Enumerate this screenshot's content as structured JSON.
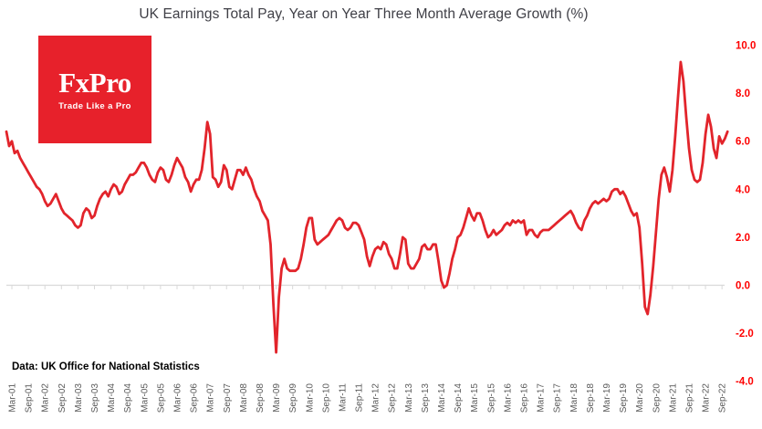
{
  "header": {
    "title": "UK Earnings Total Pay, Year on Year Three Month Average Growth (%)"
  },
  "logo": {
    "brand": "FxPro",
    "tagline": "Trade Like a Pro"
  },
  "footer": {
    "source_note": "Data: UK Office for National Statistics"
  },
  "colors": {
    "line": "#e2242b",
    "logo_bg": "#e7212b",
    "y_tick_labels": "#fe0000",
    "x_tick_labels": "#595959",
    "axis": "#d9d9d9",
    "title_text": "#3f3f46"
  },
  "chart_data": {
    "type": "line",
    "title": "UK Earnings Total Pay, Year on Year Three Month Average Growth (%)",
    "frequency": "monthly",
    "x_start": "2001-01",
    "x_end": "2022-11",
    "ylim": [
      -4.0,
      10.0
    ],
    "grid": "off",
    "legend": "none",
    "y_axis_side": "right",
    "x_tick_labels": [
      "Mar-01",
      "Sep-01",
      "Mar-02",
      "Sep-02",
      "Mar-03",
      "Sep-03",
      "Mar-04",
      "Sep-04",
      "Mar-05",
      "Sep-05",
      "Mar-06",
      "Sep-06",
      "Mar-07",
      "Sep-07",
      "Mar-08",
      "Sep-08",
      "Mar-09",
      "Sep-09",
      "Mar-10",
      "Sep-10",
      "Mar-11",
      "Sep-11",
      "Mar-12",
      "Sep-12",
      "Mar-13",
      "Sep-13",
      "Mar-14",
      "Sep-14",
      "Mar-15",
      "Sep-15",
      "Mar-16",
      "Sep-16",
      "Mar-17",
      "Sep-17",
      "Mar-18",
      "Sep-18",
      "Mar-19",
      "Sep-19",
      "Mar-20",
      "Sep-20",
      "Mar-21",
      "Sep-21",
      "Mar-22",
      "Sep-22"
    ],
    "y_ticks": [
      {
        "label": "10.0",
        "value": 10.0
      },
      {
        "label": "8.0",
        "value": 8.0
      },
      {
        "label": "6.0",
        "value": 6.0
      },
      {
        "label": "4.0",
        "value": 4.0
      },
      {
        "label": "2.0",
        "value": 2.0
      },
      {
        "label": "0.0",
        "value": 0.0
      },
      {
        "label": "-2.0",
        "value": -2.0
      },
      {
        "label": "-4.0",
        "value": -4.0
      }
    ],
    "series": [
      {
        "name": "UK earnings total pay, YoY 3-month average growth (%)",
        "values": [
          6.4,
          5.8,
          6.0,
          5.5,
          5.6,
          5.3,
          5.1,
          4.9,
          4.7,
          4.5,
          4.3,
          4.1,
          4.0,
          3.8,
          3.5,
          3.3,
          3.4,
          3.6,
          3.8,
          3.5,
          3.2,
          3.0,
          2.9,
          2.8,
          2.7,
          2.5,
          2.4,
          2.5,
          3.0,
          3.2,
          3.1,
          2.8,
          2.9,
          3.3,
          3.6,
          3.8,
          3.9,
          3.7,
          4.0,
          4.2,
          4.1,
          3.8,
          3.9,
          4.2,
          4.4,
          4.6,
          4.6,
          4.7,
          4.9,
          5.1,
          5.1,
          4.9,
          4.6,
          4.4,
          4.3,
          4.7,
          4.9,
          4.8,
          4.4,
          4.3,
          4.6,
          5.0,
          5.3,
          5.1,
          4.9,
          4.5,
          4.3,
          3.9,
          4.2,
          4.4,
          4.4,
          4.8,
          5.7,
          6.8,
          6.3,
          4.5,
          4.4,
          4.1,
          4.3,
          5.0,
          4.8,
          4.1,
          4.0,
          4.4,
          4.8,
          4.8,
          4.6,
          4.9,
          4.6,
          4.4,
          4.0,
          3.7,
          3.5,
          3.1,
          2.9,
          2.7,
          1.7,
          -0.8,
          -2.8,
          -0.5,
          0.7,
          1.1,
          0.7,
          0.6,
          0.6,
          0.6,
          0.7,
          1.1,
          1.7,
          2.4,
          2.8,
          2.8,
          1.9,
          1.7,
          1.8,
          1.9,
          2.0,
          2.1,
          2.3,
          2.5,
          2.7,
          2.8,
          2.7,
          2.4,
          2.3,
          2.4,
          2.6,
          2.6,
          2.5,
          2.2,
          1.9,
          1.2,
          0.8,
          1.2,
          1.5,
          1.6,
          1.5,
          1.8,
          1.7,
          1.3,
          1.1,
          0.7,
          0.7,
          1.3,
          2.0,
          1.9,
          0.9,
          0.7,
          0.7,
          0.9,
          1.1,
          1.6,
          1.7,
          1.5,
          1.5,
          1.7,
          1.7,
          1.0,
          0.2,
          -0.1,
          0.0,
          0.5,
          1.1,
          1.5,
          2.0,
          2.1,
          2.4,
          2.8,
          3.2,
          2.9,
          2.7,
          3.0,
          3.0,
          2.7,
          2.3,
          2.0,
          2.1,
          2.3,
          2.1,
          2.2,
          2.3,
          2.5,
          2.6,
          2.5,
          2.7,
          2.6,
          2.7,
          2.6,
          2.7,
          2.1,
          2.3,
          2.3,
          2.1,
          2.0,
          2.2,
          2.3,
          2.3,
          2.3,
          2.4,
          2.5,
          2.6,
          2.7,
          2.8,
          2.9,
          3.0,
          3.1,
          2.9,
          2.6,
          2.4,
          2.3,
          2.7,
          2.9,
          3.2,
          3.4,
          3.5,
          3.4,
          3.5,
          3.6,
          3.5,
          3.6,
          3.9,
          4.0,
          4.0,
          3.8,
          3.9,
          3.7,
          3.4,
          3.1,
          2.9,
          3.0,
          2.4,
          0.9,
          -0.9,
          -1.2,
          -0.4,
          0.8,
          2.2,
          3.6,
          4.6,
          4.9,
          4.5,
          3.9,
          4.8,
          6.2,
          7.8,
          9.3,
          8.5,
          7.0,
          5.7,
          4.8,
          4.4,
          4.3,
          4.4,
          5.1,
          6.3,
          7.1,
          6.6,
          5.7,
          5.3,
          6.2,
          5.9,
          6.1,
          6.4
        ]
      }
    ]
  }
}
